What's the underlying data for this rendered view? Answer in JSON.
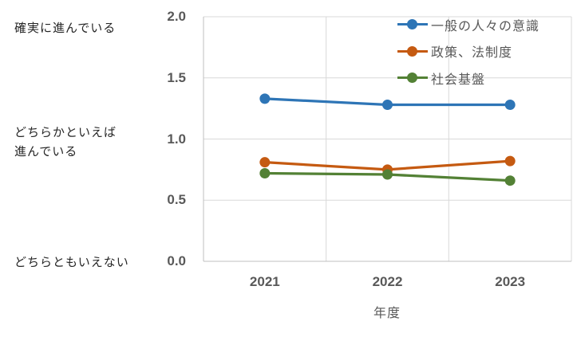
{
  "chart_data": {
    "type": "line",
    "title": "",
    "categories": [
      "2021",
      "2022",
      "2023"
    ],
    "series": [
      {
        "name": "一般の人々の意識",
        "color": "#2E75B6",
        "values": [
          1.33,
          1.28,
          1.28
        ]
      },
      {
        "name": "政策、法制度",
        "color": "#C55A11",
        "values": [
          0.81,
          0.75,
          0.82
        ]
      },
      {
        "name": "社会基盤",
        "color": "#538135",
        "values": [
          0.72,
          0.71,
          0.66
        ]
      }
    ],
    "xlabel": "年度",
    "ylim": [
      0.0,
      2.0
    ],
    "y_ticks": [
      0.0,
      0.5,
      1.0,
      1.5,
      2.0
    ],
    "y_tick_labels": [
      "0.0",
      "0.5",
      "1.0",
      "1.5",
      "2.0"
    ],
    "left_axis_annotations": [
      {
        "text": "確実に進んでいる",
        "value": 2.0
      },
      {
        "text": "どちらかといえば\n進んでいる",
        "value": 1.0
      },
      {
        "text": "どちらともいえない",
        "value": 0.0
      }
    ],
    "legend_position": "top-right",
    "grid": true,
    "colors": {
      "gridline": "#D9D9D9",
      "axis": "#BFBFBF",
      "tick_text": "#595959",
      "annotation_text": "#262626"
    }
  }
}
